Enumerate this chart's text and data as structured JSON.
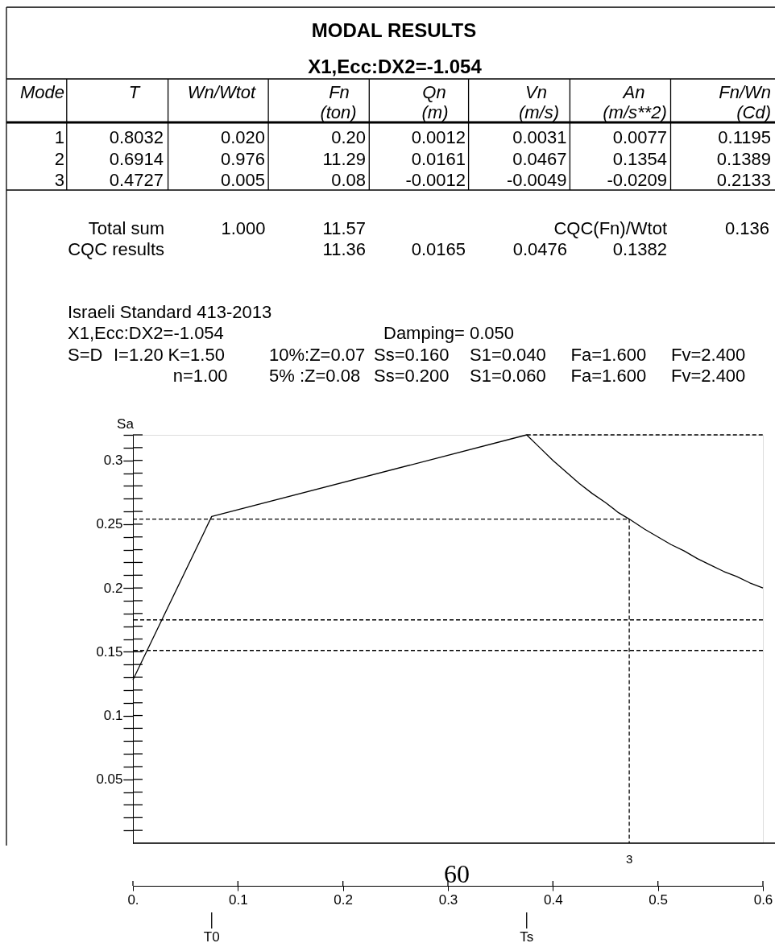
{
  "chart_data": [
    {
      "type": "other",
      "title": "MODAL RESULTS",
      "subtitle": "X1,Ecc:DX2=-1.054",
      "annotations": [
        "Mode",
        "T",
        "Wn/Wtot",
        "Fn",
        "(ton)",
        "Qn",
        "(m)",
        "Vn",
        "(m/s)",
        "An",
        "(m/s**2)",
        "Fn/Wn",
        "(Cd)",
        "1",
        "0.8032",
        "0.020",
        "0.20",
        "0.0012",
        "0.0031",
        "0.0077",
        "0.1195",
        "2",
        "0.6914",
        "0.976",
        "11.29",
        "0.0161",
        "0.0467",
        "0.1354",
        "0.1389",
        "3",
        "0.4727",
        "0.005",
        "0.08",
        "-0.0012",
        "-0.0049",
        "-0.0209",
        "0.2133",
        "Total sum",
        "1.000",
        "11.57",
        "CQC(Fn)/Wtot",
        "0.136",
        "CQC results",
        "11.36",
        "0.0165",
        "0.0476",
        "0.1382"
      ]
    },
    {
      "type": "line",
      "title": "Israeli Standard 413-2013",
      "subtitle": "X1,Ecc:DX2=-1.054",
      "ylabel": "Sa",
      "annotations": [
        "Damping= 0.050",
        "S=D",
        "I=1.20",
        "K=1.50",
        "10%:Z=0.07",
        "Ss=0.160",
        "S1=0.040",
        "Fa=1.600",
        "Fv=2.400",
        "n=1.00",
        "5% :Z=0.08",
        "Ss=0.200",
        "S1=0.060",
        "Fa=1.600",
        "Fv=2.400",
        {
          "text": "T0",
          "x": 0.075
        },
        {
          "text": "Ts",
          "x": 0.375
        },
        "60"
      ],
      "xlim": [
        0,
        0.6
      ],
      "xticks": [
        {
          "value": 0,
          "label": "0."
        },
        0.1,
        0.2,
        0.3,
        0.4,
        0.5,
        0.6
      ],
      "ylim": [
        0,
        0.32
      ],
      "yticks": [
        {
          "value": 0.01,
          "label": null
        },
        {
          "value": 0.02,
          "label": null
        },
        {
          "value": 0.03,
          "label": null
        },
        {
          "value": 0.04,
          "label": null
        },
        0.05,
        {
          "value": 0.06,
          "label": null
        },
        {
          "value": 0.07,
          "label": null
        },
        {
          "value": 0.08,
          "label": null
        },
        {
          "value": 0.09,
          "label": null
        },
        0.1,
        {
          "value": 0.11,
          "label": null
        },
        {
          "value": 0.12,
          "label": null
        },
        {
          "value": 0.13,
          "label": null
        },
        {
          "value": 0.14,
          "label": null
        },
        0.15,
        {
          "value": 0.16,
          "label": null
        },
        {
          "value": 0.17,
          "label": null
        },
        {
          "value": 0.18,
          "label": null
        },
        {
          "value": 0.19,
          "label": null
        },
        0.2,
        {
          "value": 0.21,
          "label": null
        },
        {
          "value": 0.22,
          "label": null
        },
        {
          "value": 0.23,
          "label": null
        },
        {
          "value": 0.24,
          "label": null
        },
        0.25,
        {
          "value": 0.26,
          "label": null
        },
        {
          "value": 0.27,
          "label": null
        },
        {
          "value": 0.28,
          "label": null
        },
        {
          "value": 0.29,
          "label": null
        },
        0.3,
        {
          "value": 0.31,
          "label": null
        },
        {
          "value": 0.32,
          "label": null
        }
      ],
      "grid": false,
      "series": [
        {
          "color": "#000000",
          "x": [
            0,
            0.075,
            0.375,
            0.3875,
            0.4,
            0.4125,
            0.425,
            0.4375,
            0.45,
            0.4625,
            0.4727,
            0.4875,
            0.5,
            0.5125,
            0.525,
            0.5375,
            0.55,
            0.5625,
            0.575,
            0.5875,
            0.6
          ],
          "values": [
            0.128,
            0.256,
            0.32,
            0.31,
            0.3,
            0.291,
            0.282,
            0.274,
            0.267,
            0.259,
            0.254,
            0.246,
            0.24,
            0.234,
            0.229,
            0.223,
            0.218,
            0.213,
            0.209,
            0.204,
            0.2
          ]
        },
        {
          "color": "#000000",
          "line_style": "dashed",
          "x": [
            0.375,
            0.6
          ],
          "values": [
            0.32,
            0.32
          ]
        },
        {
          "name": "3",
          "color": "#000000",
          "line_style": "dashed",
          "x": [
            0,
            0.4727,
            0.4727
          ],
          "values": [
            0.254,
            0.254,
            0
          ]
        }
      ],
      "ref_lines": [
        {
          "axis": "y",
          "value": 0.175,
          "color": "#000000",
          "line_style": "dashed"
        },
        {
          "axis": "y",
          "value": 0.151,
          "color": "#000000",
          "line_style": "dashed"
        }
      ]
    }
  ]
}
